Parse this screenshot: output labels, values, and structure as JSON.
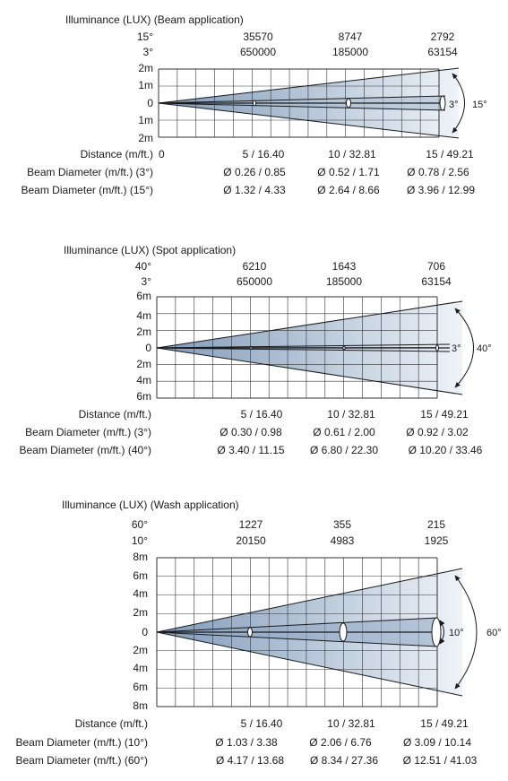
{
  "panels": [
    {
      "title": "Illuminance (LUX) (Beam application)",
      "angles": [
        "15°",
        "3°"
      ],
      "lux_rows": [
        [
          "35570",
          "8747",
          "2792"
        ],
        [
          "650000",
          "185000",
          "63154"
        ]
      ],
      "y_labels": [
        "2m",
        "1m",
        "0",
        "1m",
        "2m"
      ],
      "distance_label": "Distance (m/ft.)",
      "distance_zero": "0",
      "distances": [
        "5 / 16.40",
        "10 / 32.81",
        "15 / 49.21"
      ],
      "beam_narrow": "3°",
      "beam_wide": "15°",
      "diameter_rows": [
        {
          "label": "Beam Diameter (m/ft.) (3°)",
          "values": [
            "Ø 0.26 / 0.85",
            "Ø 0.52 / 1.71",
            "Ø 0.78 / 2.56"
          ]
        },
        {
          "label": "Beam Diameter (m/ft.) (15°)",
          "values": [
            "Ø 1.32 / 4.33",
            "Ø 2.64 / 8.66",
            "Ø 3.96 / 12.99"
          ]
        }
      ]
    },
    {
      "title": "Illuminance (LUX) (Spot application)",
      "angles": [
        "40°",
        "3°"
      ],
      "lux_rows": [
        [
          "6210",
          "1643",
          "706"
        ],
        [
          "650000",
          "185000",
          "63154"
        ]
      ],
      "y_labels": [
        "6m",
        "4m",
        "2m",
        "0",
        "2m",
        "4m",
        "6m"
      ],
      "distance_label": "Distance (m/ft.)",
      "distance_zero": "",
      "distances": [
        "5 / 16.40",
        "10 / 32.81",
        "15 / 49.21"
      ],
      "beam_narrow": "3°",
      "beam_wide": "40°",
      "diameter_rows": [
        {
          "label": "Beam Diameter (m/ft.) (3°)",
          "values": [
            "Ø 0.30 / 0.98",
            "Ø 0.61 / 2.00",
            "Ø 0.92 / 3.02"
          ]
        },
        {
          "label": "Beam Diameter (m/ft.) (40°)",
          "values": [
            "Ø 3.40 / 11.15",
            "Ø 6.80 / 22.30",
            "Ø 10.20 / 33.46"
          ]
        }
      ]
    },
    {
      "title": "Illuminance (LUX) (Wash application)",
      "angles": [
        "60°",
        "10°"
      ],
      "lux_rows": [
        [
          "1227",
          "355",
          "215"
        ],
        [
          "20150",
          "4983",
          "1925"
        ]
      ],
      "y_labels": [
        "8m",
        "6m",
        "4m",
        "2m",
        "0",
        "2m",
        "4m",
        "6m",
        "8m"
      ],
      "distance_label": "Distance (m/ft.)",
      "distance_zero": "",
      "distances": [
        "5 / 16.40",
        "10 / 32.81",
        "15 / 49.21"
      ],
      "beam_narrow": "10°",
      "beam_wide": "60°",
      "diameter_rows": [
        {
          "label": "Beam Diameter (m/ft.) (10°)",
          "values": [
            "Ø 1.03 / 3.38",
            "Ø 2.06 / 6.76",
            "Ø 3.09 / 10.14"
          ]
        },
        {
          "label": "Beam Diameter (m/ft.) (60°)",
          "values": [
            "Ø 4.17 / 13.68",
            "Ø 8.34 / 27.36",
            "Ø 12.51 / 41.03"
          ]
        }
      ]
    }
  ],
  "colors": {
    "beam_dark": "#7f9ab9",
    "beam_light": "#eef3f8",
    "grid": "#333333",
    "text": "#1a1a1a"
  }
}
